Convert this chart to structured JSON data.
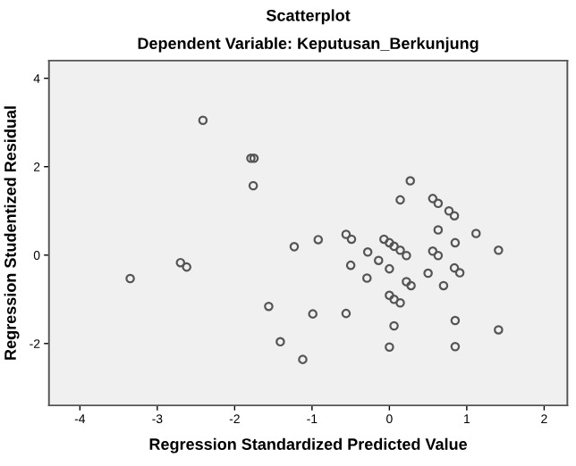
{
  "chart_data": {
    "type": "scatter",
    "title": "Scatterplot",
    "subtitle": "Dependent Variable: Keputusan_Berkunjung",
    "xlabel": "Regression Standardized Predicted Value",
    "ylabel": "Regression Studentized Residual",
    "x": [
      -2.41,
      -1.79,
      -1.75,
      -1.76,
      -1.23,
      -3.35,
      -2.7,
      -2.62,
      -1.56,
      -1.41,
      -1.12,
      -0.92,
      -0.99,
      -0.56,
      -0.56,
      -0.49,
      -0.28,
      -0.5,
      -0.29,
      -0.14,
      -0.07,
      0.0,
      0.06,
      0.14,
      0.22,
      0.0,
      0.22,
      0.28,
      0.0,
      0.06,
      0.14,
      0.06,
      0.0,
      0.27,
      0.14,
      0.56,
      0.63,
      0.77,
      0.84,
      0.63,
      0.85,
      1.12,
      1.41,
      0.56,
      0.63,
      0.5,
      0.84,
      0.91,
      0.7,
      0.85,
      1.41,
      0.85
    ],
    "values": [
      3.05,
      2.19,
      2.19,
      1.57,
      0.19,
      -0.53,
      -0.17,
      -0.27,
      -1.16,
      -1.96,
      -2.36,
      0.35,
      -1.33,
      -1.32,
      0.47,
      0.36,
      0.07,
      -0.23,
      -0.52,
      -0.12,
      0.36,
      0.28,
      0.2,
      0.11,
      -0.01,
      -0.31,
      -0.6,
      -0.69,
      -0.91,
      -1.0,
      -1.08,
      -1.6,
      -2.08,
      1.68,
      1.25,
      1.28,
      1.17,
      1.0,
      0.89,
      0.57,
      0.28,
      0.49,
      0.11,
      0.09,
      -0.01,
      -0.41,
      -0.29,
      -0.4,
      -0.69,
      -1.48,
      -1.69,
      -2.07
    ],
    "color": "#555555",
    "marker": "circle",
    "xlim": [
      -4.4,
      2.3
    ],
    "ylim": [
      -3.4,
      4.4
    ],
    "xticks": [
      -4,
      -3,
      -2,
      -1,
      0,
      1,
      2
    ],
    "yticks": [
      -2,
      0,
      2,
      4
    ],
    "grid": false,
    "legend": false
  }
}
